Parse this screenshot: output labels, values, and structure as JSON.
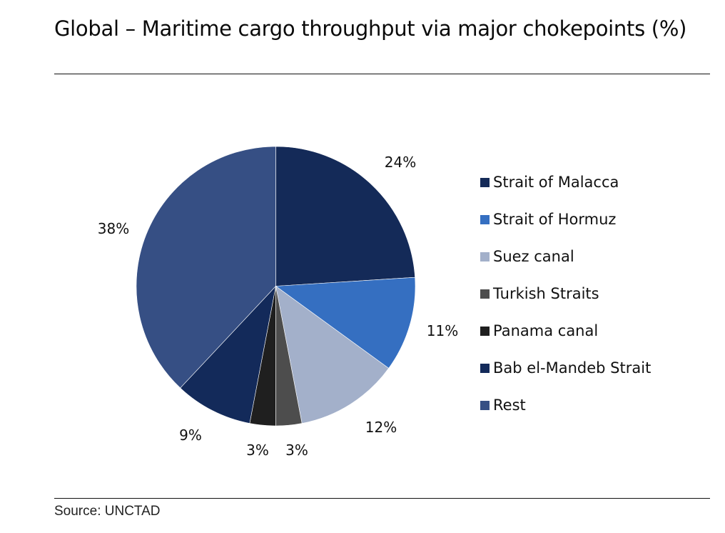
{
  "chart_data": {
    "type": "pie",
    "title": "Global – Maritime cargo throughput via major chokepoints (%)",
    "source": "Source: UNCTAD",
    "start_angle": "12 o'clock",
    "direction": "clockwise",
    "legend_position": "right",
    "slices": [
      {
        "name": "Strait of Malacca",
        "value": 24,
        "label": "24%",
        "color": "#142a58"
      },
      {
        "name": "Strait of Hormuz",
        "value": 11,
        "label": "11%",
        "color": "#356fc1"
      },
      {
        "name": "Suez canal",
        "value": 12,
        "label": "12%",
        "color": "#a3b0ca"
      },
      {
        "name": "Turkish Straits",
        "value": 3,
        "label": "3%",
        "color": "#4d4d4d"
      },
      {
        "name": "Panama canal",
        "value": 3,
        "label": "3%",
        "color": "#1f1f1f"
      },
      {
        "name": "Bab el-Mandeb Strait",
        "value": 9,
        "label": "9%",
        "color": "#132a5a"
      },
      {
        "name": "Rest",
        "value": 38,
        "label": "38%",
        "color": "#364f84"
      }
    ]
  }
}
